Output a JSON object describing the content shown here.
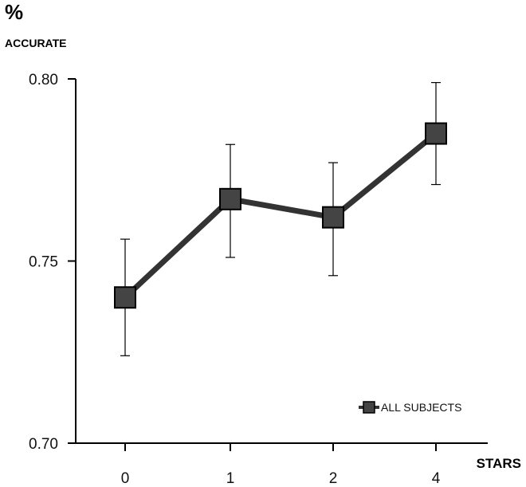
{
  "chart_data": {
    "type": "line",
    "ylabel_line1": "%",
    "ylabel_line2": "ACCURATE",
    "xlabel": "STARS",
    "categories": [
      "0",
      "1",
      "2",
      "4"
    ],
    "ylim": [
      0.7,
      0.8
    ],
    "yticks": [
      {
        "value": 0.7,
        "label": "0.70"
      },
      {
        "value": 0.75,
        "label": "0.75"
      },
      {
        "value": 0.8,
        "label": "0.80"
      }
    ],
    "series": [
      {
        "name": "ALL SUBJECTS",
        "values": [
          0.74,
          0.767,
          0.762,
          0.785
        ],
        "error_low": [
          0.724,
          0.751,
          0.746,
          0.771
        ],
        "error_high": [
          0.756,
          0.782,
          0.777,
          0.799
        ],
        "color": "#333333",
        "marker": "square"
      }
    ],
    "legend_placement": "bottom-right"
  }
}
